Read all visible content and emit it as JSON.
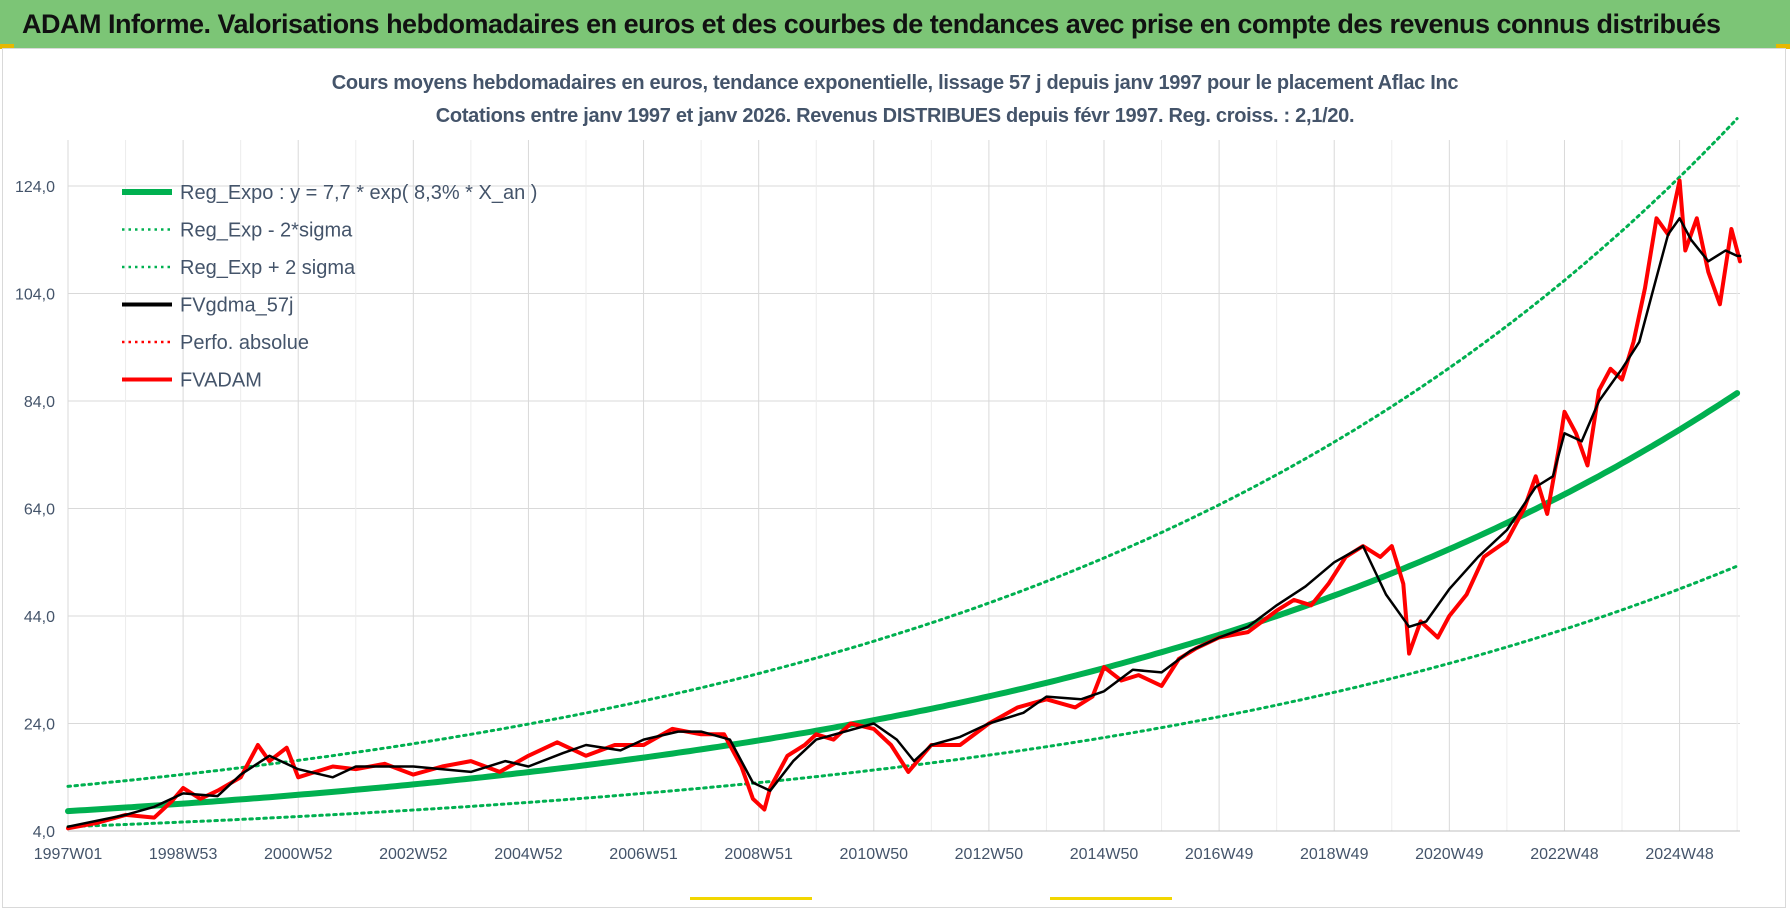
{
  "banner": {
    "title": "ADAM Informe. Valorisations hebdomadaires en euros et des courbes de tendances avec prise en compte des revenus connus distribués"
  },
  "chart_data": {
    "type": "line",
    "title": "Cours moyens hebdomadaires en euros, tendance exponentielle, lissage 57 j depuis janv 1997 pour le placement Aflac Inc",
    "subtitle": "Cotations entre janv 1997 et janv 2026. Revenus DISTRIBUES depuis févr 1997. Reg. croiss. : 2,1/20.",
    "xlabel": "",
    "ylabel": "",
    "x_ticks": [
      "1997W01",
      "1998W53",
      "2000W52",
      "2002W52",
      "2004W52",
      "2006W51",
      "2008W51",
      "2010W50",
      "2012W50",
      "2014W50",
      "2016W49",
      "2018W49",
      "2020W49",
      "2022W48",
      "2024W48"
    ],
    "y_ticks": [
      "4,0",
      "24,0",
      "44,0",
      "64,0",
      "84,0",
      "104,0",
      "124,0"
    ],
    "ylim": [
      4,
      135
    ],
    "xlim": [
      1997.0,
      2026.05
    ],
    "grid": true,
    "legend_position": "top-left",
    "series": [
      {
        "name": "Reg_Expo : y = 7,7 * exp( 8,3% *  X_an )",
        "color": "#00b050",
        "style": "solid-thick",
        "formula": {
          "a": 7.7,
          "rate": 0.083
        }
      },
      {
        "name": "Reg_Exp - 2*sigma",
        "color": "#00b050",
        "style": "dotted",
        "formula": {
          "a": 4.8,
          "rate": 0.083
        }
      },
      {
        "name": "Reg_Exp + 2 sigma",
        "color": "#00b050",
        "style": "dotted",
        "formula": {
          "a": 12.3,
          "rate": 0.083
        }
      },
      {
        "name": "FVgdma_57j",
        "color": "#000000",
        "style": "solid",
        "x": [
          1997.0,
          1998.0,
          1998.5,
          1999.0,
          1999.6,
          2000.0,
          2000.5,
          2001.0,
          2001.6,
          2002.0,
          2003.0,
          2004.0,
          2004.6,
          2005.0,
          2005.6,
          2006.0,
          2006.6,
          2007.0,
          2007.6,
          2008.0,
          2008.5,
          2008.9,
          2009.2,
          2009.6,
          2010.0,
          2010.5,
          2011.0,
          2011.4,
          2011.7,
          2012.0,
          2012.5,
          2013.0,
          2013.6,
          2014.0,
          2014.6,
          2015.0,
          2015.5,
          2016.0,
          2016.5,
          2017.0,
          2017.5,
          2018.0,
          2018.5,
          2019.0,
          2019.5,
          2019.9,
          2020.3,
          2020.6,
          2021.0,
          2021.5,
          2022.0,
          2022.5,
          2022.8,
          2023.0,
          2023.3,
          2023.6,
          2024.0,
          2024.3,
          2024.6,
          2024.8,
          2025.0,
          2025.2,
          2025.5,
          2025.8,
          2026.0,
          2026.05
        ],
        "y": [
          4.8,
          7.0,
          8.5,
          11.0,
          10.5,
          14.5,
          18.0,
          15.5,
          14.0,
          16.0,
          16.0,
          15.0,
          17.0,
          16.0,
          18.5,
          20.0,
          19.0,
          21.0,
          22.5,
          22.5,
          21.0,
          13.0,
          11.5,
          17.0,
          21.0,
          22.5,
          24.0,
          21.0,
          17.0,
          20.0,
          21.5,
          24.0,
          26.0,
          29.0,
          28.5,
          30.0,
          34.0,
          33.5,
          37.5,
          40.0,
          42.0,
          46.0,
          49.5,
          54.0,
          57.0,
          48.0,
          42.0,
          43.0,
          49.0,
          55.0,
          60.0,
          68.0,
          70.0,
          78.0,
          76.5,
          84.0,
          90.0,
          95.0,
          107.0,
          115.0,
          118.0,
          114.0,
          110.0,
          112.0,
          111.0,
          111.0
        ]
      },
      {
        "name": "Perfo. absolue",
        "color": "#ff0000",
        "style": "dotted",
        "values": []
      },
      {
        "name": "FVADAM",
        "color": "#ff0000",
        "style": "solid-thick",
        "x": [
          1997.0,
          1997.5,
          1998.0,
          1998.5,
          1998.8,
          1999.0,
          1999.3,
          1999.6,
          2000.0,
          2000.3,
          2000.5,
          2000.8,
          2001.0,
          2001.3,
          2001.6,
          2002.0,
          2002.5,
          2003.0,
          2003.5,
          2004.0,
          2004.5,
          2005.0,
          2005.5,
          2006.0,
          2006.5,
          2007.0,
          2007.5,
          2008.0,
          2008.4,
          2008.7,
          2008.9,
          2009.1,
          2009.2,
          2009.5,
          2009.8,
          2010.0,
          2010.3,
          2010.6,
          2011.0,
          2011.3,
          2011.6,
          2011.8,
          2012.0,
          2012.5,
          2013.0,
          2013.5,
          2014.0,
          2014.5,
          2014.8,
          2015.0,
          2015.3,
          2015.6,
          2016.0,
          2016.3,
          2016.6,
          2017.0,
          2017.5,
          2018.0,
          2018.3,
          2018.6,
          2018.9,
          2019.2,
          2019.5,
          2019.8,
          2020.0,
          2020.2,
          2020.3,
          2020.5,
          2020.8,
          2021.0,
          2021.3,
          2021.6,
          2022.0,
          2022.3,
          2022.5,
          2022.7,
          2022.9,
          2023.0,
          2023.2,
          2023.4,
          2023.6,
          2023.8,
          2024.0,
          2024.2,
          2024.4,
          2024.6,
          2024.8,
          2025.0,
          2025.1,
          2025.3,
          2025.5,
          2025.7,
          2025.9,
          2026.05
        ],
        "y": [
          4.5,
          5.5,
          7.0,
          6.5,
          9.5,
          12.0,
          10.0,
          11.5,
          14.0,
          20.0,
          17.0,
          19.5,
          14.0,
          15.0,
          16.0,
          15.5,
          16.5,
          14.5,
          16.0,
          17.0,
          15.0,
          18.0,
          20.5,
          18.0,
          20.0,
          20.0,
          23.0,
          22.0,
          22.0,
          16.0,
          10.0,
          8.0,
          12.0,
          18.0,
          20.0,
          22.0,
          21.0,
          24.0,
          23.0,
          20.0,
          15.0,
          17.5,
          20.0,
          20.0,
          24.0,
          27.0,
          28.5,
          27.0,
          29.0,
          34.5,
          32.0,
          33.0,
          31.0,
          36.0,
          38.0,
          40.0,
          41.0,
          45.0,
          47.0,
          46.0,
          50.0,
          55.0,
          57.0,
          55.0,
          57.0,
          50.0,
          37.0,
          43.0,
          40.0,
          44.0,
          48.0,
          55.0,
          58.0,
          64.0,
          70.0,
          63.0,
          75.0,
          82.0,
          78.0,
          72.0,
          86.0,
          90.0,
          88.0,
          95.0,
          105.0,
          118.0,
          115.0,
          125.0,
          112.0,
          118.0,
          108.0,
          102.0,
          116.0,
          110.0
        ]
      }
    ]
  }
}
